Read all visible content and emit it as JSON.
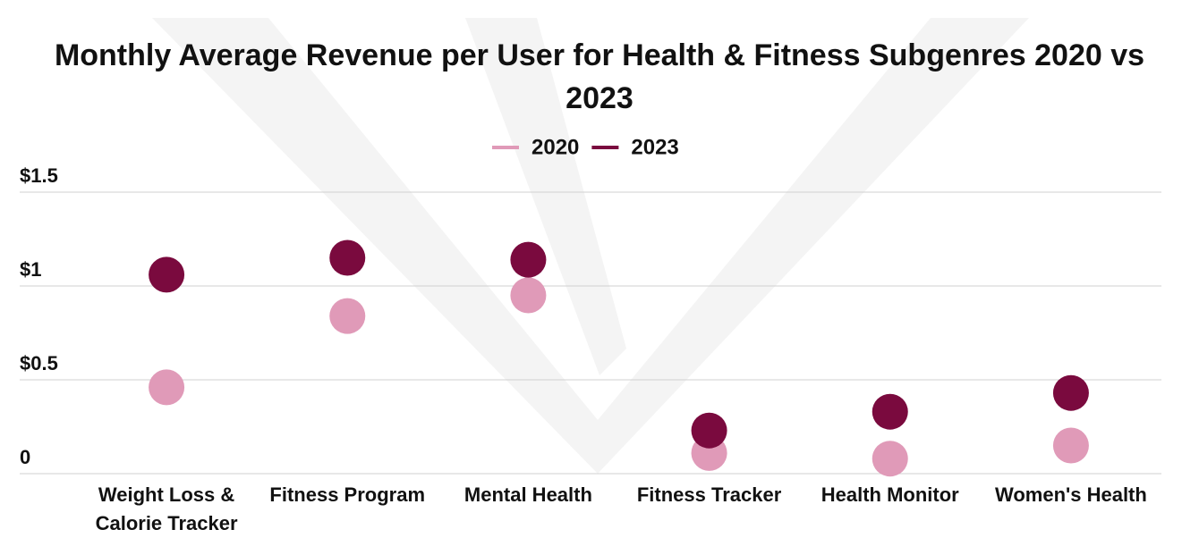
{
  "chart_data": {
    "type": "dot",
    "title": "Monthly Average Revenue per User for Health & Fitness Subgenres 2020 vs 2023",
    "categories": [
      "Weight Loss & Calorie Tracker",
      "Fitness Program",
      "Mental Health",
      "Fitness Tracker",
      "Health Monitor",
      "Women's Health"
    ],
    "series": [
      {
        "name": "2020",
        "color": "#e09ab8",
        "values": [
          0.46,
          0.84,
          0.95,
          0.11,
          0.08,
          0.15
        ]
      },
      {
        "name": "2023",
        "color": "#7a0a3e",
        "values": [
          1.06,
          1.15,
          1.14,
          0.23,
          0.33,
          0.43
        ]
      }
    ],
    "ylim": [
      0,
      1.5
    ],
    "yticks": [
      0,
      {
        "value": 0.5,
        "label": "$0.5"
      },
      {
        "value": 1,
        "label": "$1"
      },
      {
        "value": 1.5,
        "label": "$1.5"
      }
    ],
    "grid": true,
    "legend": "top"
  }
}
